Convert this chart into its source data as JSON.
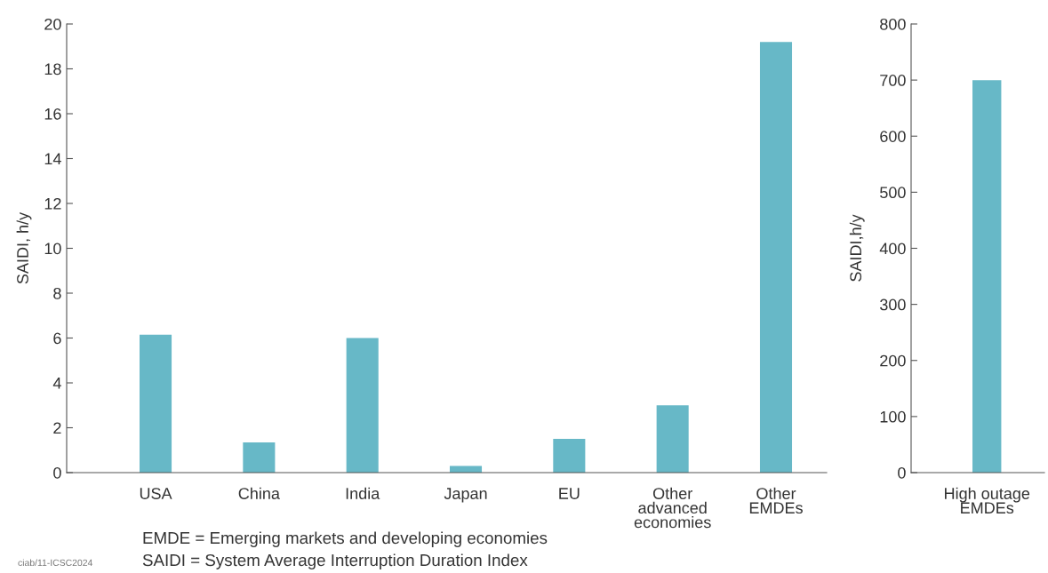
{
  "chart_data": [
    {
      "type": "bar",
      "ylabel": "SAIDI, h/y",
      "categories": [
        "USA",
        "China",
        "India",
        "Japan",
        "EU",
        "Other\nadvanced\neconomies",
        "Other\nEMDEs"
      ],
      "values": [
        6.15,
        1.35,
        6.0,
        0.3,
        1.5,
        3.0,
        19.2
      ],
      "color": "#67b8c7",
      "ylim": [
        0,
        20
      ],
      "yticks": [
        0,
        2,
        4,
        6,
        8,
        10,
        12,
        14,
        16,
        18,
        20
      ],
      "grid": false,
      "legend": false,
      "annotations": [
        "EMDE = Emerging markets and developing economies",
        "SAIDI = System Average Interruption Duration Index",
        "ciab/11-ICSC2024"
      ]
    },
    {
      "type": "bar",
      "ylabel": "SAIDI,h/y",
      "categories": [
        "High outage\nEMDEs"
      ],
      "values": [
        700
      ],
      "color": "#67b8c7",
      "ylim": [
        0,
        800
      ],
      "yticks": [
        0,
        100,
        200,
        300,
        400,
        500,
        600,
        700,
        800
      ],
      "grid": false,
      "legend": false
    }
  ]
}
